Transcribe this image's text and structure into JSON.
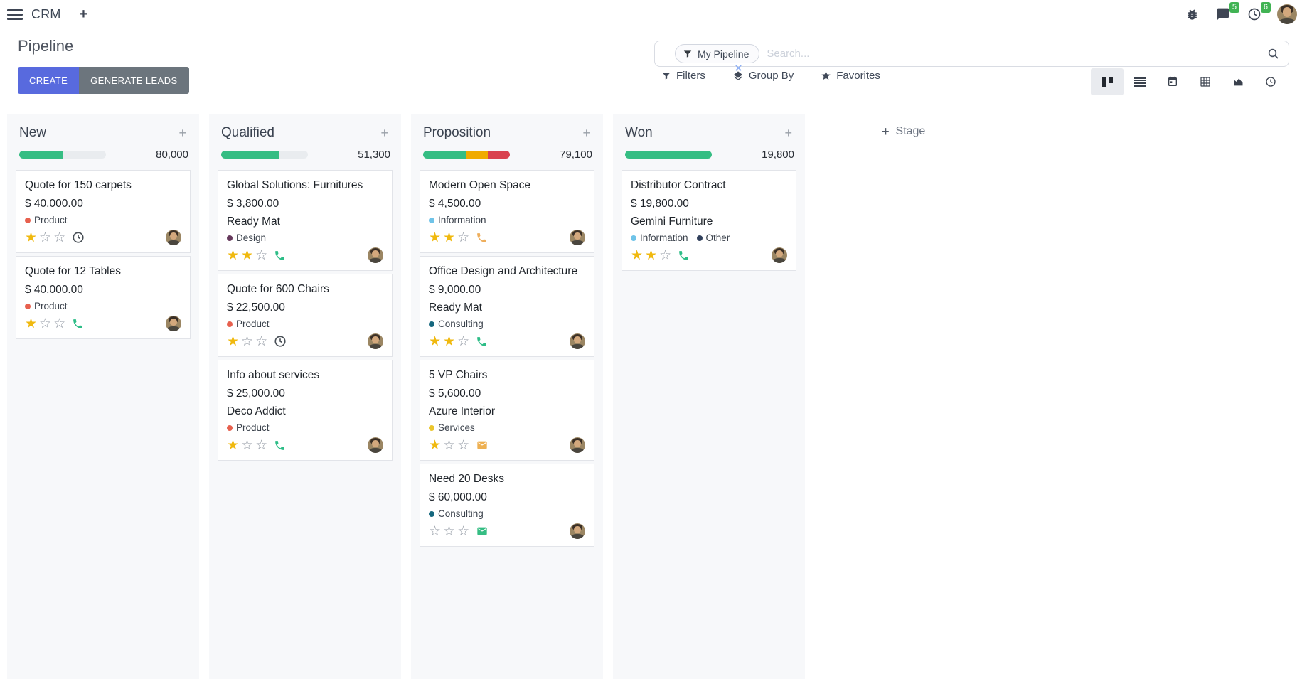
{
  "topbar": {
    "app_name": "CRM",
    "message_badge": "5",
    "activity_badge": "6"
  },
  "control_panel": {
    "title": "Pipeline",
    "create_label": "CREATE",
    "generate_leads_label": "GENERATE LEADS",
    "search": {
      "facet_label": "My Pipeline",
      "placeholder": "Search..."
    },
    "filters_label": "Filters",
    "group_by_label": "Group By",
    "favorites_label": "Favorites"
  },
  "icons": {
    "plus": "+",
    "star_filled": "★",
    "star_empty": "☆"
  },
  "colors": {
    "primary": "#586ade",
    "secondary": "#6c757d",
    "success": "#35bd83",
    "warning": "#f0ab00",
    "danger": "#d9414e",
    "badge_green": "#41b354"
  },
  "kanban": {
    "add_stage_label": "Stage",
    "columns": [
      {
        "name": "New",
        "counter": "80,000",
        "progress": [
          {
            "color": "#35bd83",
            "pct": 50
          }
        ],
        "cards": [
          {
            "title": "Quote for 150 carpets",
            "amount": "$ 40,000.00",
            "tags": [
              {
                "label": "Product",
                "color": "#e7604e"
              }
            ],
            "stars": 1,
            "activity": {
              "icon": "clock",
              "color": "#495057"
            }
          },
          {
            "title": "Quote for 12 Tables",
            "amount": "$ 40,000.00",
            "tags": [
              {
                "label": "Product",
                "color": "#e7604e"
              }
            ],
            "stars": 1,
            "activity": {
              "icon": "phone",
              "color": "#2dbd87"
            }
          }
        ]
      },
      {
        "name": "Qualified",
        "counter": "51,300",
        "progress": [
          {
            "color": "#35bd83",
            "pct": 66
          }
        ],
        "cards": [
          {
            "title": "Global Solutions: Furnitures",
            "amount": "$ 3,800.00",
            "partner": "Ready Mat",
            "tags": [
              {
                "label": "Design",
                "color": "#66395c"
              }
            ],
            "stars": 2,
            "activity": {
              "icon": "phone",
              "color": "#2dbd87"
            }
          },
          {
            "title": "Quote for 600 Chairs",
            "amount": "$ 22,500.00",
            "tags": [
              {
                "label": "Product",
                "color": "#e7604e"
              }
            ],
            "stars": 1,
            "activity": {
              "icon": "clock",
              "color": "#495057"
            }
          },
          {
            "title": "Info about services",
            "amount": "$ 25,000.00",
            "partner": "Deco Addict",
            "tags": [
              {
                "label": "Product",
                "color": "#e7604e"
              }
            ],
            "stars": 1,
            "activity": {
              "icon": "phone",
              "color": "#2dbd87"
            }
          }
        ]
      },
      {
        "name": "Proposition",
        "counter": "79,100",
        "progress": [
          {
            "color": "#35bd83",
            "pct": 49
          },
          {
            "color": "#f0ab00",
            "pct": 26
          },
          {
            "color": "#d9414e",
            "pct": 25
          }
        ],
        "cards": [
          {
            "title": "Modern Open Space",
            "amount": "$ 4,500.00",
            "tags": [
              {
                "label": "Information",
                "color": "#6fc3e8"
              }
            ],
            "stars": 2,
            "activity": {
              "icon": "phone",
              "color": "#eeae5c"
            }
          },
          {
            "title": "Office Design and Architecture",
            "amount": "$ 9,000.00",
            "partner": "Ready Mat",
            "tags": [
              {
                "label": "Consulting",
                "color": "#15677e"
              }
            ],
            "stars": 2,
            "activity": {
              "icon": "phone",
              "color": "#2dbd87"
            }
          },
          {
            "title": "5 VP Chairs",
            "amount": "$ 5,600.00",
            "partner": "Azure Interior",
            "tags": [
              {
                "label": "Services",
                "color": "#ebc62d"
              }
            ],
            "stars": 1,
            "activity": {
              "icon": "envelope",
              "color": "#eeb051"
            }
          },
          {
            "title": "Need 20 Desks",
            "amount": "$ 60,000.00",
            "tags": [
              {
                "label": "Consulting",
                "color": "#15677e"
              }
            ],
            "stars": 0,
            "activity": {
              "icon": "envelope",
              "color": "#35bd83"
            }
          }
        ]
      },
      {
        "name": "Won",
        "counter": "19,800",
        "progress": [
          {
            "color": "#35bd83",
            "pct": 100
          }
        ],
        "cards": [
          {
            "title": "Distributor Contract",
            "amount": "$ 19,800.00",
            "partner": "Gemini Furniture",
            "tags": [
              {
                "label": "Information",
                "color": "#6fc3e8"
              },
              {
                "label": "Other",
                "color": "#31405c"
              }
            ],
            "stars": 2,
            "activity": {
              "icon": "phone",
              "color": "#2dbd87"
            }
          }
        ]
      }
    ]
  }
}
